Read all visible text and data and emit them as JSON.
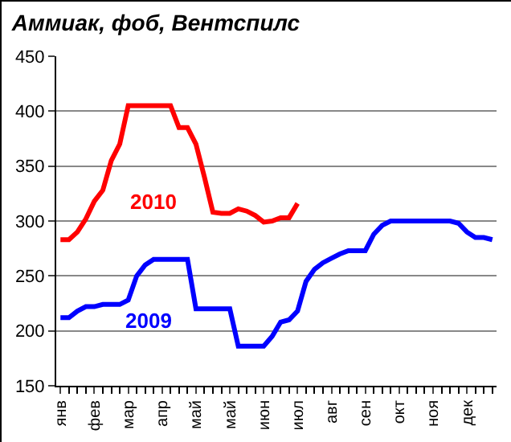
{
  "chart_data": {
    "type": "line",
    "title": "Аммиак, фоб, Вентспилс",
    "categories": [
      "янв",
      null,
      null,
      null,
      "фев",
      null,
      null,
      null,
      "мар",
      null,
      null,
      null,
      "апр",
      null,
      null,
      null,
      "май",
      null,
      null,
      null,
      "май",
      null,
      null,
      null,
      "июн",
      null,
      null,
      null,
      "июл",
      null,
      null,
      null,
      "авг",
      null,
      null,
      null,
      "сен",
      null,
      null,
      null,
      "окт",
      null,
      null,
      null,
      "ноя",
      null,
      null,
      null,
      "дек",
      null,
      null,
      null
    ],
    "series": [
      {
        "name": "2010",
        "color": "#ff0000",
        "values": [
          283,
          283,
          290,
          302,
          318,
          328,
          355,
          370,
          405,
          405,
          405,
          405,
          405,
          405,
          385,
          385,
          370,
          340,
          308,
          307,
          307,
          311,
          309,
          305,
          299,
          300,
          303,
          303,
          316,
          null,
          null,
          null,
          null,
          null,
          null,
          null,
          null,
          null,
          null,
          null,
          null,
          null,
          null,
          null,
          null,
          null,
          null,
          null,
          null,
          null,
          null,
          null
        ]
      },
      {
        "name": "2009",
        "color": "#0000ff",
        "values": [
          212,
          212,
          218,
          222,
          222,
          224,
          224,
          224,
          228,
          250,
          260,
          265,
          265,
          265,
          265,
          265,
          220,
          220,
          220,
          220,
          220,
          186,
          186,
          186,
          186,
          195,
          208,
          210,
          218,
          245,
          256,
          262,
          266,
          270,
          273,
          273,
          273,
          288,
          296,
          300,
          300,
          300,
          300,
          300,
          300,
          300,
          300,
          298,
          290,
          285,
          285,
          283
        ]
      }
    ],
    "ylim": [
      150,
      450
    ],
    "yticks": [
      150,
      200,
      250,
      300,
      350,
      400,
      450
    ],
    "grid": "y",
    "legend": false,
    "marker": "none",
    "line_style": "solid"
  }
}
